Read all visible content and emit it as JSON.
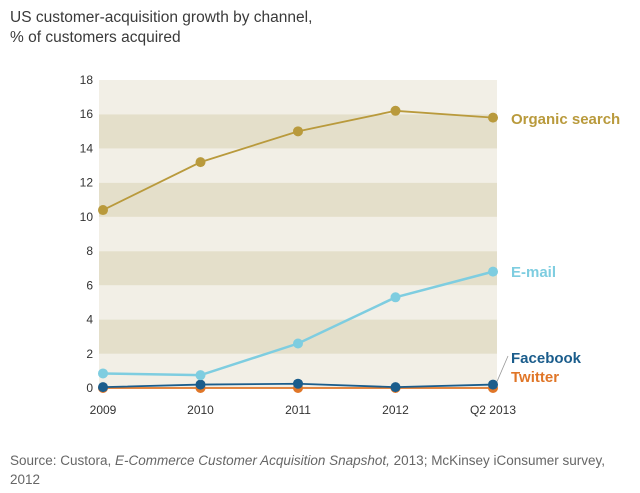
{
  "chart_data": {
    "type": "line",
    "title_lines": [
      "US customer-acquisition growth by channel,",
      "% of customers acquired"
    ],
    "categories": [
      "2009",
      "2010",
      "2011",
      "2012",
      "Q2 2013"
    ],
    "ylim": [
      0,
      18
    ],
    "yticks": [
      "0",
      "2",
      "4",
      "6",
      "8",
      "10",
      "12",
      "14",
      "16",
      "18"
    ],
    "series": [
      {
        "name": "Organic search",
        "values": [
          10.4,
          13.2,
          15.0,
          16.2,
          15.8
        ],
        "color": "#b99a3c"
      },
      {
        "name": "E-mail",
        "values": [
          0.85,
          0.75,
          2.6,
          5.3,
          6.8
        ],
        "color": "#7ecde0"
      },
      {
        "name": "Facebook",
        "values": [
          0.05,
          0.2,
          0.25,
          0.05,
          0.2
        ],
        "color": "#1b5d8c"
      },
      {
        "name": "Twitter",
        "values": [
          0.0,
          0.0,
          0.0,
          0.0,
          0.0
        ],
        "color": "#e07628"
      }
    ],
    "grid": "horizontal-bands",
    "band_colors": [
      "#f2efe6",
      "#e4dfca"
    ],
    "legend": "labels at right end of lines"
  },
  "source": {
    "prefix": "Source: Custora, ",
    "italic": "E-Commerce Customer Acquisition Snapshot,",
    "suffix": " 2013; McKinsey iConsumer survey, 2012"
  }
}
